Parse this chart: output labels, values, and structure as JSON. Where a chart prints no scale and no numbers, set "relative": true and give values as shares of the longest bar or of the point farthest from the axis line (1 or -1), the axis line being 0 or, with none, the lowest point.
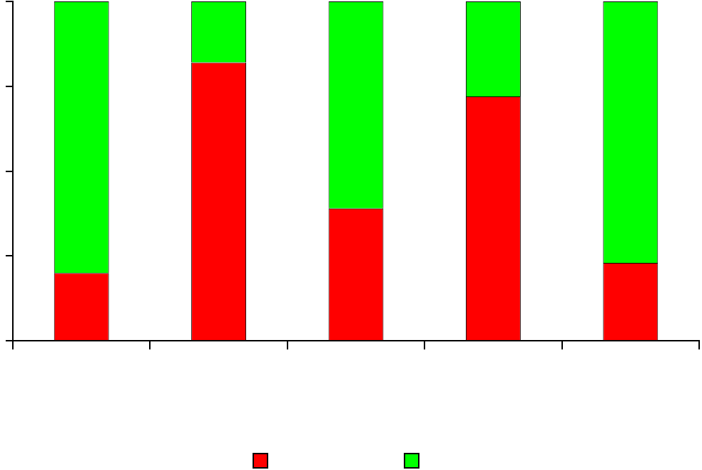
{
  "chart_data": {
    "type": "bar",
    "stacked": true,
    "relative": true,
    "categories": [
      null,
      null,
      null,
      null,
      null
    ],
    "series": [
      {
        "color": "#ff0000",
        "values": [
          0.2,
          0.82,
          0.39,
          0.72,
          0.23
        ]
      },
      {
        "color": "#00ff00",
        "values": [
          0.8,
          0.18,
          0.61,
          0.28,
          0.77
        ]
      }
    ],
    "grid": false
  }
}
